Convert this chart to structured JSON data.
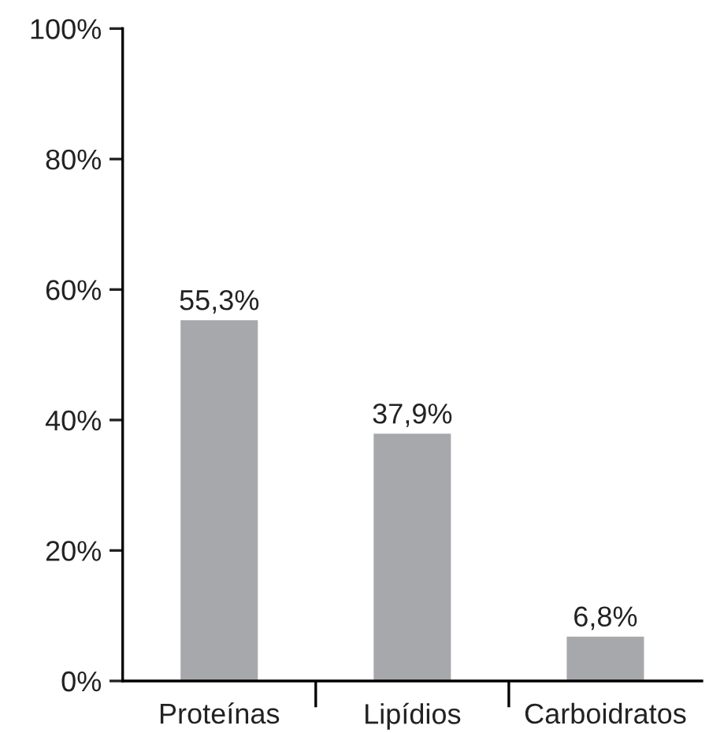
{
  "chart_data": {
    "type": "bar",
    "categories": [
      "Proteínas",
      "Lipídios",
      "Carboidratos"
    ],
    "values": [
      55.3,
      37.9,
      6.8
    ],
    "value_labels": [
      "55,3%",
      "37,9%",
      "6,8%"
    ],
    "color": "#a7a8ab",
    "ylim": [
      0,
      100
    ],
    "yticks": [
      {
        "value": 0,
        "label": "0%"
      },
      {
        "value": 20,
        "label": "20%"
      },
      {
        "value": 40,
        "label": "40%"
      },
      {
        "value": 60,
        "label": "60%"
      },
      {
        "value": 80,
        "label": "80%"
      },
      {
        "value": 100,
        "label": "100%"
      }
    ],
    "grid": false,
    "legend": false
  }
}
